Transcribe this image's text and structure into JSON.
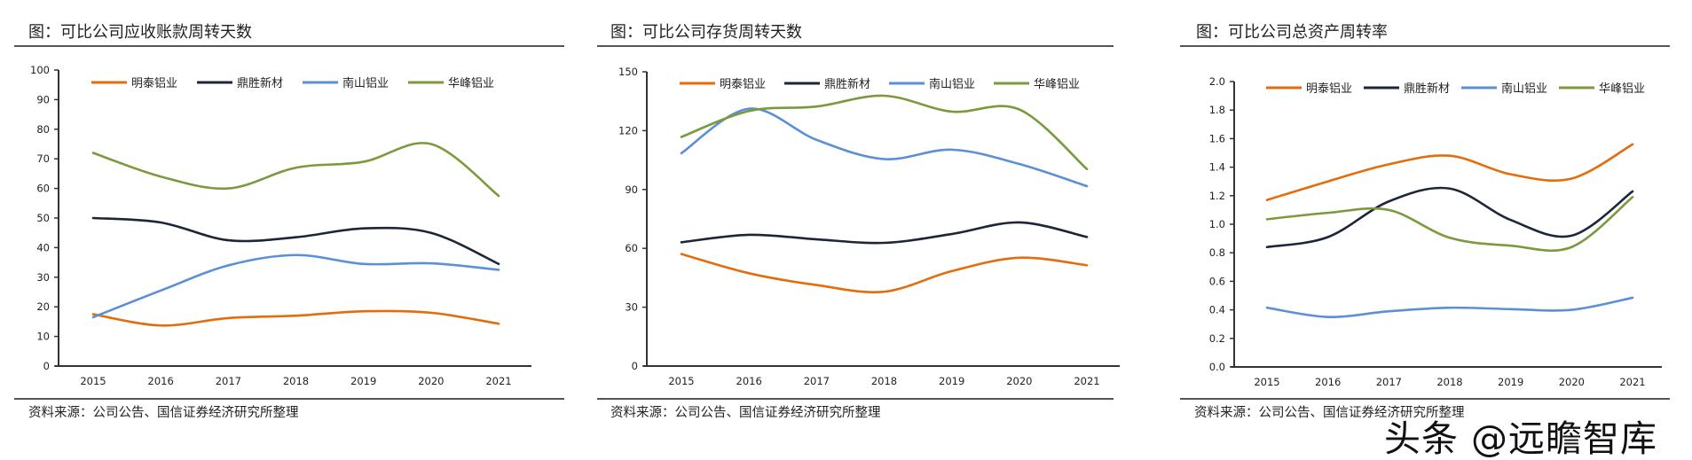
{
  "watermark": "头条 @远瞻智库",
  "colors": {
    "明泰铝业": "#E46C0A",
    "鼎胜新材": "#1B2638",
    "南山铝业": "#5B8FD6",
    "华峰铝业": "#7A9A3C"
  },
  "chart_data": [
    {
      "type": "line",
      "title": "图：可比公司应收账款周转天数",
      "source": "资料来源：公司公告、国信证券经济研究所整理",
      "categories": [
        "2015",
        "2016",
        "2017",
        "2018",
        "2019",
        "2020",
        "2021"
      ],
      "ylim": [
        0,
        100
      ],
      "yticks": [
        "0",
        "10",
        "20",
        "30",
        "40",
        "50",
        "60",
        "70",
        "80",
        "90",
        "100"
      ],
      "legend": "top",
      "grid": false,
      "series": [
        {
          "name": "明泰铝业",
          "values": [
            17.5,
            13.7,
            16.2,
            17.0,
            18.5,
            18.0,
            14.3
          ]
        },
        {
          "name": "鼎胜新材",
          "values": [
            50.0,
            48.5,
            42.5,
            43.5,
            46.5,
            45.0,
            34.5
          ]
        },
        {
          "name": "南山铝业",
          "values": [
            16.5,
            25.5,
            34.0,
            37.5,
            34.5,
            34.7,
            32.5
          ]
        },
        {
          "name": "华峰铝业",
          "values": [
            72.0,
            64.0,
            60.0,
            67.0,
            69.0,
            75.0,
            57.5
          ]
        }
      ]
    },
    {
      "type": "line",
      "title": "图：可比公司存货周转天数",
      "source": "资料来源：公司公告、国信证券经济研究所整理",
      "categories": [
        "2015",
        "2016",
        "2017",
        "2018",
        "2019",
        "2020",
        "2021"
      ],
      "ylim": [
        0,
        150
      ],
      "yticks": [
        "0",
        "30",
        "60",
        "90",
        "120",
        "150"
      ],
      "legend": "top",
      "grid": false,
      "series": [
        {
          "name": "明泰铝业",
          "values": [
            57.1,
            47.3,
            41.3,
            37.9,
            48.4,
            55.2,
            51.4
          ]
        },
        {
          "name": "鼎胜新材",
          "values": [
            63.1,
            66.9,
            64.6,
            62.8,
            67.3,
            73.2,
            65.8
          ]
        },
        {
          "name": "南山铝业",
          "values": [
            108.5,
            131.2,
            115.3,
            105.5,
            110.3,
            103.0,
            91.7
          ]
        },
        {
          "name": "华峰铝业",
          "values": [
            116.8,
            130.0,
            132.3,
            137.8,
            129.7,
            130.8,
            100.4
          ]
        }
      ]
    },
    {
      "type": "line",
      "title": "图：可比公司总资产周转率",
      "source": "资料来源：公司公告、国信证券经济研究所整理",
      "categories": [
        "2015",
        "2016",
        "2017",
        "2018",
        "2019",
        "2020",
        "2021"
      ],
      "ylim": [
        0,
        2
      ],
      "yticks": [
        "0.0",
        "0.2",
        "0.4",
        "0.6",
        "0.8",
        "1.0",
        "1.2",
        "1.4",
        "1.6",
        "1.8",
        "2.0"
      ],
      "legend": "top",
      "grid": false,
      "series": [
        {
          "name": "明泰铝业",
          "values": [
            1.17,
            1.3,
            1.42,
            1.48,
            1.35,
            1.32,
            1.56
          ]
        },
        {
          "name": "鼎胜新材",
          "values": [
            0.84,
            0.91,
            1.16,
            1.25,
            1.03,
            0.92,
            1.23
          ]
        },
        {
          "name": "南山铝业",
          "values": [
            0.415,
            0.35,
            0.39,
            0.415,
            0.405,
            0.4,
            0.485
          ]
        },
        {
          "name": "华峰铝业",
          "values": [
            1.035,
            1.08,
            1.1,
            0.905,
            0.85,
            0.84,
            1.19
          ]
        }
      ]
    }
  ]
}
